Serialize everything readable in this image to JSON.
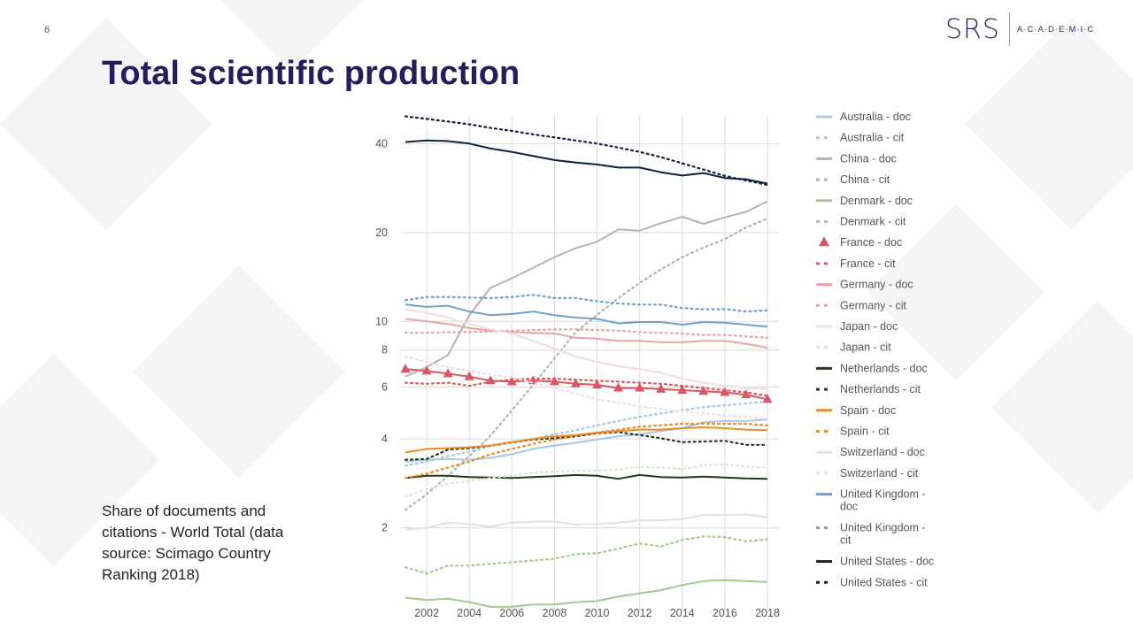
{
  "page_number": "6",
  "logo": {
    "mark": "SRS",
    "text": "A·C·A·D·E·M·I·C"
  },
  "title": "Total scientific production",
  "caption": "Share of documents and citations - World Total (data source: Scimago Country Ranking 2018)",
  "colors": {
    "title": "#241d5c",
    "australia": "#a6c8e2",
    "china": "#b3b3b3",
    "denmark": "#a3ca8c",
    "france": "#d95762",
    "germany": "#e9a3a5",
    "japan": "#f1dbe1",
    "netherlands": "#213a18",
    "spain": "#ec8a24",
    "switzerland": "#dfe4d4",
    "uk": "#6f9fcb",
    "us": "#0e2040"
  },
  "chart_data": {
    "type": "line",
    "xlabel": "",
    "ylabel": "",
    "x": [
      2001,
      2002,
      2003,
      2004,
      2005,
      2006,
      2007,
      2008,
      2009,
      2010,
      2011,
      2012,
      2013,
      2014,
      2015,
      2016,
      2017,
      2018
    ],
    "x_ticks": [
      2002,
      2004,
      2006,
      2008,
      2010,
      2012,
      2014,
      2016,
      2018
    ],
    "x_tick_labels": [
      "2002",
      "2004",
      "2006",
      "2008",
      "2010",
      "2012",
      "2014",
      "2016",
      "2018"
    ],
    "y_scale": "log",
    "y_ticks": [
      2,
      4,
      6,
      8,
      10,
      20,
      40
    ],
    "y_tick_labels": [
      "2",
      "4",
      "6",
      "8",
      "10",
      "20",
      "40"
    ],
    "ylim": [
      1.05,
      50
    ],
    "series": [
      {
        "name": "Australia - doc",
        "style": "solid",
        "color": "#a6c8e2",
        "values": [
          3.35,
          3.4,
          3.42,
          3.4,
          3.45,
          3.55,
          3.7,
          3.8,
          3.88,
          3.98,
          4.08,
          4.15,
          4.25,
          4.35,
          4.55,
          4.6,
          4.6,
          4.65
        ]
      },
      {
        "name": "Australia - cit",
        "style": "dotted",
        "color": "#a6c8e2",
        "values": [
          3.25,
          3.35,
          3.5,
          3.62,
          3.78,
          3.88,
          4.0,
          4.15,
          4.28,
          4.45,
          4.6,
          4.75,
          4.88,
          5.0,
          5.12,
          5.2,
          5.28,
          5.35
        ]
      },
      {
        "name": "China - doc",
        "style": "solid",
        "color": "#b3b3b3",
        "values": [
          6.5,
          7.0,
          7.7,
          10.5,
          13.0,
          14.0,
          15.2,
          16.5,
          17.7,
          18.6,
          20.5,
          20.3,
          21.5,
          22.6,
          21.4,
          22.5,
          23.5,
          25.5
        ]
      },
      {
        "name": "China - cit",
        "style": "dotted",
        "color": "#b3b3b3",
        "values": [
          2.3,
          2.6,
          3.0,
          3.5,
          4.1,
          5.0,
          6.1,
          7.5,
          9.2,
          10.5,
          12.0,
          13.5,
          15.0,
          16.5,
          17.8,
          19.0,
          20.8,
          22.3
        ]
      },
      {
        "name": "Denmark - doc",
        "style": "solid",
        "color": "#a3ca8c",
        "values": [
          1.16,
          1.14,
          1.15,
          1.12,
          1.08,
          1.08,
          1.1,
          1.1,
          1.12,
          1.13,
          1.17,
          1.2,
          1.23,
          1.28,
          1.32,
          1.33,
          1.32,
          1.31
        ]
      },
      {
        "name": "Denmark - cit",
        "style": "dotted",
        "color": "#a3ca8c",
        "values": [
          1.47,
          1.4,
          1.49,
          1.49,
          1.51,
          1.53,
          1.55,
          1.57,
          1.63,
          1.64,
          1.7,
          1.77,
          1.73,
          1.82,
          1.87,
          1.86,
          1.8,
          1.83
        ]
      },
      {
        "name": "France - doc",
        "style": "triangle",
        "color": "#d95762",
        "values": [
          6.9,
          6.8,
          6.65,
          6.5,
          6.3,
          6.25,
          6.3,
          6.25,
          6.15,
          6.1,
          5.95,
          5.95,
          5.9,
          5.85,
          5.8,
          5.75,
          5.65,
          5.45
        ]
      },
      {
        "name": "France - cit",
        "style": "dotted",
        "color": "#d95762",
        "values": [
          6.2,
          6.15,
          6.2,
          6.05,
          6.25,
          6.35,
          6.4,
          6.4,
          6.35,
          6.3,
          6.25,
          6.2,
          6.15,
          6.05,
          5.95,
          5.85,
          5.75,
          5.6
        ]
      },
      {
        "name": "Germany - doc",
        "style": "solid",
        "color": "#e9a3a5",
        "values": [
          10.2,
          10.0,
          9.8,
          9.5,
          9.3,
          9.2,
          9.15,
          9.1,
          8.8,
          8.75,
          8.6,
          8.6,
          8.5,
          8.5,
          8.6,
          8.6,
          8.4,
          8.15
        ]
      },
      {
        "name": "Germany - cit",
        "style": "dotted",
        "color": "#e9a3a5",
        "values": [
          9.15,
          9.15,
          9.2,
          9.2,
          9.25,
          9.3,
          9.35,
          9.4,
          9.4,
          9.35,
          9.3,
          9.2,
          9.15,
          9.1,
          9.0,
          9.0,
          8.9,
          8.8
        ]
      },
      {
        "name": "Japan - doc",
        "style": "solid",
        "color": "#f1dbe1",
        "values": [
          11.0,
          10.7,
          10.3,
          9.8,
          9.4,
          9.1,
          8.6,
          8.1,
          7.6,
          7.3,
          7.05,
          6.9,
          6.7,
          6.4,
          6.2,
          6.05,
          5.95,
          5.9
        ]
      },
      {
        "name": "Japan - cit",
        "style": "dotted",
        "color": "#f1dbe1",
        "values": [
          7.6,
          7.3,
          7.0,
          6.8,
          6.6,
          6.45,
          6.2,
          5.95,
          5.7,
          5.45,
          5.3,
          5.15,
          5.05,
          4.95,
          4.9,
          4.8,
          4.75,
          4.7
        ]
      },
      {
        "name": "Netherlands - doc",
        "style": "solid",
        "color": "#213a18",
        "values": [
          2.95,
          3.0,
          3.0,
          2.97,
          2.96,
          2.95,
          2.97,
          2.99,
          3.02,
          3.0,
          2.93,
          3.02,
          2.97,
          2.96,
          2.98,
          2.96,
          2.94,
          2.93
        ]
      },
      {
        "name": "Netherlands - cit",
        "style": "dotted",
        "color": "#213a18",
        "values": [
          3.4,
          3.42,
          3.68,
          3.72,
          3.8,
          3.9,
          3.98,
          4.02,
          4.08,
          4.18,
          4.22,
          4.12,
          4.02,
          3.9,
          3.92,
          3.94,
          3.82,
          3.82
        ]
      },
      {
        "name": "Spain - doc",
        "style": "solid",
        "color": "#ec8a24",
        "values": [
          3.6,
          3.7,
          3.72,
          3.75,
          3.8,
          3.9,
          4.0,
          4.08,
          4.12,
          4.2,
          4.25,
          4.3,
          4.3,
          4.35,
          4.38,
          4.35,
          4.3,
          4.28
        ]
      },
      {
        "name": "Spain - cit",
        "style": "dotted",
        "color": "#ec8a24",
        "values": [
          2.95,
          3.05,
          3.2,
          3.35,
          3.55,
          3.7,
          3.85,
          3.98,
          4.1,
          4.2,
          4.3,
          4.4,
          4.45,
          4.5,
          4.5,
          4.5,
          4.5,
          4.45
        ]
      },
      {
        "name": "Switzerland - doc",
        "style": "solid",
        "color": "#dfe4d4",
        "values": [
          1.97,
          2.0,
          2.08,
          2.06,
          2.02,
          2.08,
          2.1,
          2.1,
          2.05,
          2.06,
          2.08,
          2.12,
          2.12,
          2.14,
          2.21,
          2.21,
          2.22,
          2.17
        ]
      },
      {
        "name": "Switzerland - cit",
        "style": "dotted",
        "color": "#dfe4d4",
        "values": [
          2.55,
          2.7,
          2.82,
          2.88,
          2.95,
          3.0,
          3.08,
          3.1,
          3.12,
          3.12,
          3.15,
          3.22,
          3.2,
          3.16,
          3.26,
          3.28,
          3.22,
          3.2
        ]
      },
      {
        "name": "United Kingdom - doc",
        "style": "solid",
        "color": "#6f9fcb",
        "values": [
          11.4,
          11.2,
          11.3,
          10.8,
          10.5,
          10.6,
          10.8,
          10.5,
          10.3,
          10.2,
          9.85,
          9.95,
          9.95,
          9.75,
          9.95,
          9.9,
          9.75,
          9.6
        ]
      },
      {
        "name": "United Kingdom - cit",
        "style": "dotted",
        "color": "#6f9fcb",
        "values": [
          11.8,
          12.1,
          12.1,
          12.05,
          12.0,
          12.1,
          12.3,
          12.0,
          12.0,
          11.7,
          11.5,
          11.4,
          11.4,
          11.1,
          11.0,
          11.0,
          10.8,
          10.9
        ]
      },
      {
        "name": "United States - doc",
        "style": "solid",
        "color": "#0e2040",
        "values": [
          40.5,
          41.0,
          40.8,
          40.0,
          38.5,
          37.5,
          36.3,
          35.2,
          34.5,
          34.0,
          33.2,
          33.2,
          32.0,
          31.2,
          31.8,
          30.6,
          30.3,
          29.3
        ]
      },
      {
        "name": "United States - cit",
        "style": "dotted",
        "color": "#0e2040",
        "values": [
          49.5,
          48.5,
          47.5,
          46.5,
          45.2,
          44.2,
          43.0,
          42.0,
          41.0,
          40.0,
          38.8,
          37.5,
          36.0,
          34.3,
          32.7,
          31.1,
          30.0,
          29.0
        ]
      }
    ],
    "legend": {
      "placement": "right",
      "entries": [
        "Australia - doc",
        "Australia - cit",
        "China - doc",
        "China - cit",
        "Denmark - doc",
        "Denmark - cit",
        "France - doc",
        "France - cit",
        "Germany - doc",
        "Germany - cit",
        "Japan - doc",
        "Japan - cit",
        "Netherlands - doc",
        "Netherlands - cit",
        "Spain - doc",
        "Spain - cit",
        "Switzerland - doc",
        "Switzerland - cit",
        "United Kingdom - doc",
        "United Kingdom - cit",
        "United States - doc",
        "United States - cit"
      ]
    }
  }
}
